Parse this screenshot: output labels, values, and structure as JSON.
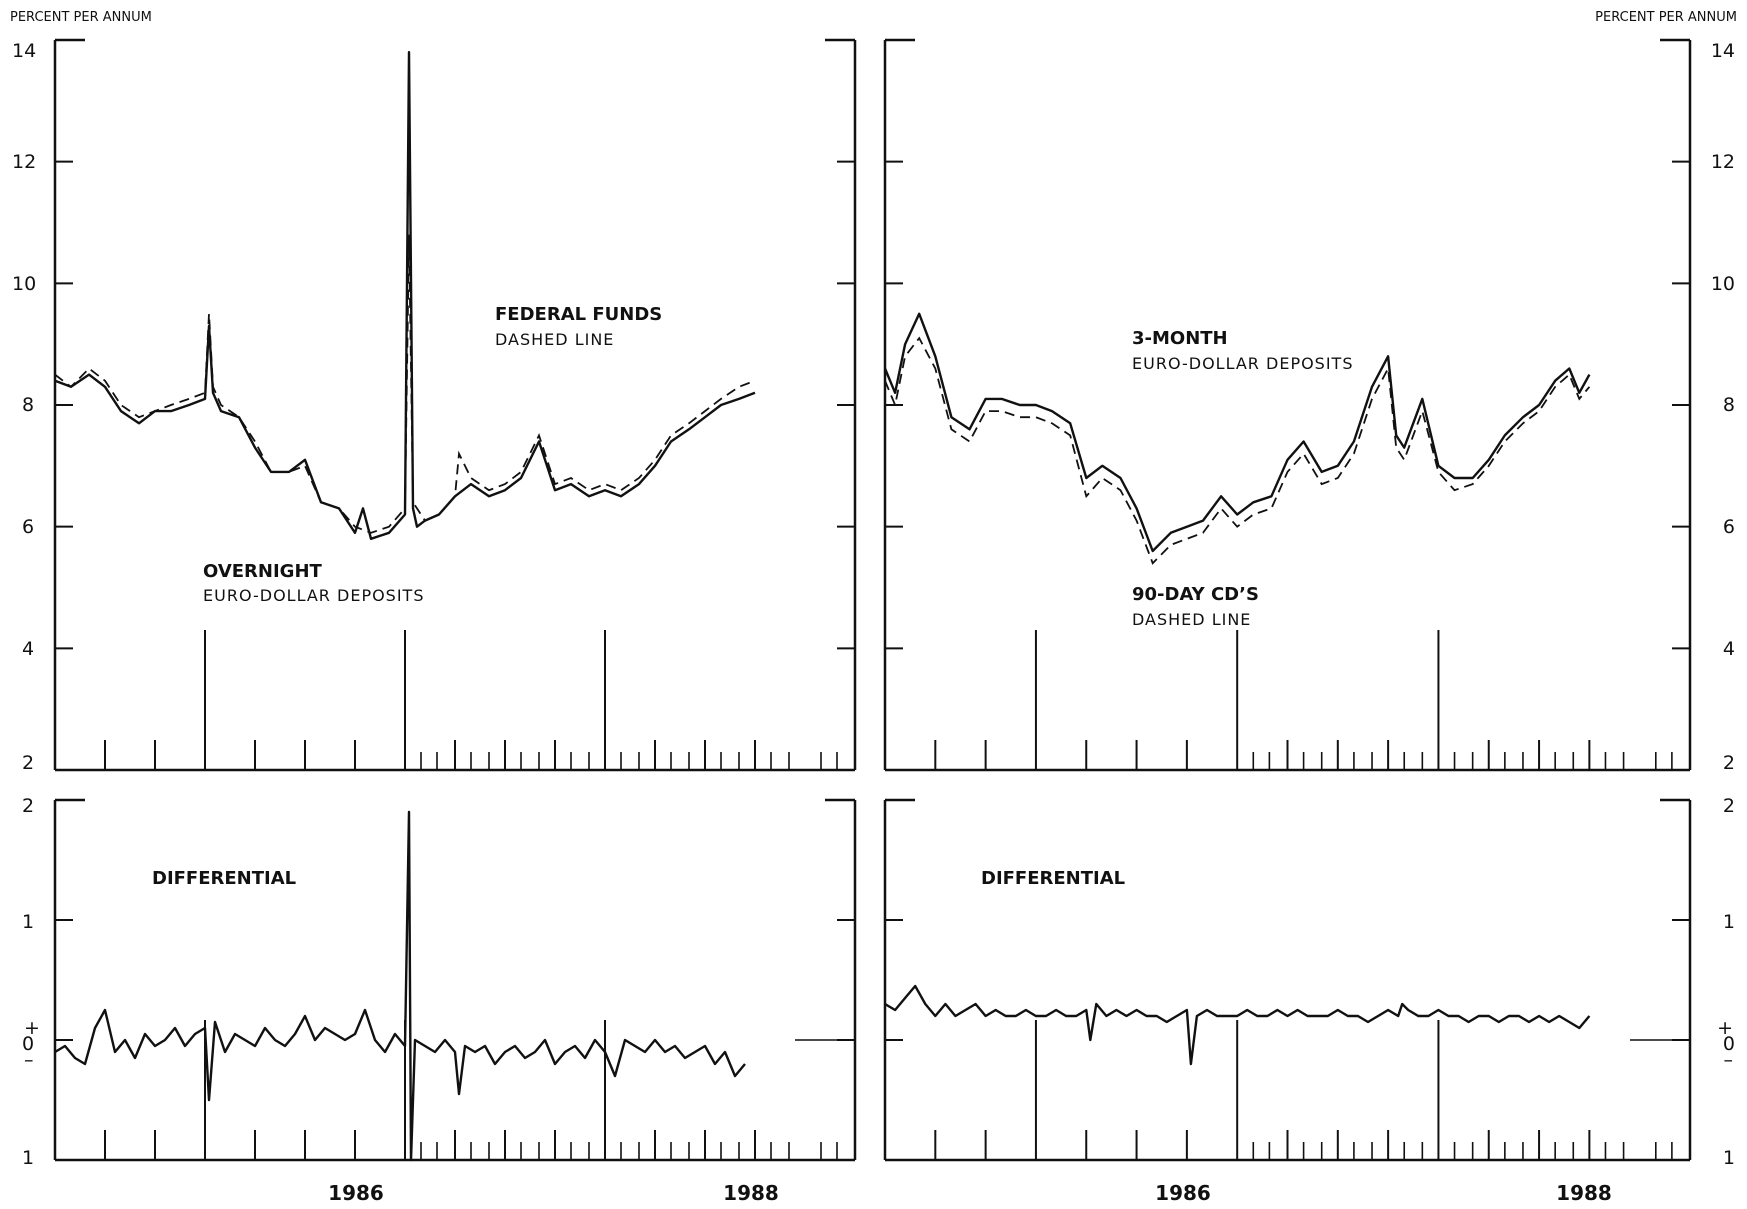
{
  "unit_labels": {
    "left": "PERCENT PER ANNUM",
    "right": "PERCENT PER ANNUM"
  },
  "left_ticks_top": [
    "14",
    "12",
    "10",
    "8",
    "6",
    "4",
    "2"
  ],
  "left_ticks_bottom": [
    "2",
    "1",
    "0",
    "1"
  ],
  "right_ticks_top": [
    "14",
    "12",
    "10",
    "8",
    "6",
    "4",
    "2"
  ],
  "right_ticks_bottom": [
    "2",
    "1",
    "0",
    "1"
  ],
  "zero_sign_plus": "+",
  "zero_sign_minus": "–",
  "x_year_labels": [
    "1986",
    "1988"
  ],
  "annotations": {
    "fed_funds_title": "FEDERAL FUNDS",
    "fed_funds_sub": "DASHED LINE",
    "overnight_title": "OVERNIGHT",
    "overnight_sub": "EURO-DOLLAR DEPOSITS",
    "three_month_title": "3-MONTH",
    "three_month_sub": "EURO-DOLLAR DEPOSITS",
    "cd_title": "90-DAY CD’S",
    "cd_sub": "DASHED LINE",
    "diff_left": "DIFFERENTIAL",
    "diff_right": "DIFFERENTIAL"
  },
  "colors": {
    "ink": "#111111",
    "paper": "#ffffff"
  },
  "chart_data": [
    {
      "type": "line",
      "panel": "top-left",
      "ylim": [
        2,
        14
      ],
      "xlim": [
        1984.75,
        1988.75
      ],
      "series": [
        {
          "name": "OVERNIGHT EURO-DOLLAR DEPOSITS",
          "x": [
            1984.75,
            1984.83,
            1984.92,
            1985.0,
            1985.08,
            1985.17,
            1985.25,
            1985.33,
            1985.42,
            1985.5,
            1985.52,
            1985.54,
            1985.58,
            1985.67,
            1985.75,
            1985.83,
            1985.92,
            1986.0,
            1986.08,
            1986.17,
            1986.25,
            1986.29,
            1986.33,
            1986.42,
            1986.5,
            1986.52,
            1986.54,
            1986.56,
            1986.6,
            1986.67,
            1986.75,
            1986.83,
            1986.92,
            1987.0,
            1987.08,
            1987.17,
            1987.25,
            1987.33,
            1987.42,
            1987.5,
            1987.58,
            1987.67,
            1987.75,
            1987.83,
            1987.92,
            1988.0,
            1988.08,
            1988.17,
            1988.25
          ],
          "values": [
            8.4,
            8.3,
            8.5,
            8.3,
            7.9,
            7.7,
            7.9,
            7.9,
            8.0,
            8.1,
            9.3,
            8.2,
            7.9,
            7.8,
            7.3,
            6.9,
            6.9,
            7.1,
            6.4,
            6.3,
            5.9,
            6.3,
            5.8,
            5.9,
            6.2,
            13.8,
            6.3,
            6.0,
            6.1,
            6.2,
            6.5,
            6.7,
            6.5,
            6.6,
            6.8,
            7.4,
            6.6,
            6.7,
            6.5,
            6.6,
            6.5,
            6.7,
            7.0,
            7.4,
            7.6,
            7.8,
            8.0,
            8.1,
            8.2
          ]
        },
        {
          "name": "FEDERAL FUNDS",
          "x": [
            1984.75,
            1984.83,
            1984.92,
            1985.0,
            1985.08,
            1985.17,
            1985.25,
            1985.33,
            1985.42,
            1985.5,
            1985.52,
            1985.54,
            1985.58,
            1985.67,
            1985.75,
            1985.83,
            1985.92,
            1986.0,
            1986.08,
            1986.17,
            1986.25,
            1986.33,
            1986.42,
            1986.5,
            1986.52,
            1986.54,
            1986.6,
            1986.67,
            1986.75,
            1986.77,
            1986.83,
            1986.92,
            1987.0,
            1987.08,
            1987.17,
            1987.25,
            1987.33,
            1987.42,
            1987.5,
            1987.58,
            1987.67,
            1987.75,
            1987.83,
            1987.92,
            1988.0,
            1988.08,
            1988.17,
            1988.25
          ],
          "values": [
            8.5,
            8.3,
            8.6,
            8.4,
            8.0,
            7.8,
            7.9,
            8.0,
            8.1,
            8.2,
            9.5,
            8.3,
            8.0,
            7.8,
            7.4,
            6.9,
            6.9,
            7.0,
            6.4,
            6.3,
            6.0,
            5.9,
            6.0,
            6.3,
            10.8,
            6.4,
            6.1,
            6.2,
            6.5,
            7.2,
            6.8,
            6.6,
            6.7,
            6.9,
            7.5,
            6.7,
            6.8,
            6.6,
            6.7,
            6.6,
            6.8,
            7.1,
            7.5,
            7.7,
            7.9,
            8.1,
            8.3,
            8.4
          ]
        }
      ]
    },
    {
      "type": "line",
      "panel": "bottom-left",
      "title": "DIFFERENTIAL",
      "ylim": [
        -1,
        2
      ],
      "xlim": [
        1984.75,
        1988.75
      ],
      "series": [
        {
          "x": [
            1984.75,
            1984.8,
            1984.85,
            1984.9,
            1984.95,
            1985.0,
            1985.05,
            1985.1,
            1985.15,
            1985.2,
            1985.25,
            1985.3,
            1985.35,
            1985.4,
            1985.45,
            1985.5,
            1985.52,
            1985.55,
            1985.6,
            1985.65,
            1985.7,
            1985.75,
            1985.8,
            1985.85,
            1985.9,
            1985.95,
            1986.0,
            1986.05,
            1986.1,
            1986.15,
            1986.2,
            1986.25,
            1986.3,
            1986.35,
            1986.4,
            1986.45,
            1986.5,
            1986.52,
            1986.53,
            1986.55,
            1986.6,
            1986.65,
            1986.7,
            1986.75,
            1986.77,
            1986.8,
            1986.85,
            1986.9,
            1986.95,
            1987.0,
            1987.05,
            1987.1,
            1987.15,
            1987.2,
            1987.25,
            1987.3,
            1987.35,
            1987.4,
            1987.45,
            1987.5,
            1987.55,
            1987.6,
            1987.65,
            1987.7,
            1987.75,
            1987.8,
            1987.85,
            1987.9,
            1987.95,
            1988.0,
            1988.05,
            1988.1,
            1988.15,
            1988.2
          ],
          "values": [
            -0.1,
            -0.05,
            -0.15,
            -0.2,
            0.1,
            0.25,
            -0.1,
            0.0,
            -0.15,
            0.05,
            -0.05,
            0.0,
            0.1,
            -0.05,
            0.05,
            0.1,
            -0.5,
            0.15,
            -0.1,
            0.05,
            0.0,
            -0.05,
            0.1,
            0.0,
            -0.05,
            0.05,
            0.2,
            0.0,
            0.1,
            0.05,
            0.0,
            0.05,
            0.25,
            0.0,
            -0.1,
            0.05,
            -0.05,
            1.9,
            -1.0,
            0.0,
            -0.05,
            -0.1,
            0.0,
            -0.1,
            -0.45,
            -0.05,
            -0.1,
            -0.05,
            -0.2,
            -0.1,
            -0.05,
            -0.15,
            -0.1,
            0.0,
            -0.2,
            -0.1,
            -0.05,
            -0.15,
            0.0,
            -0.1,
            -0.3,
            0.0,
            -0.05,
            -0.1,
            0.0,
            -0.1,
            -0.05,
            -0.15,
            -0.1,
            -0.05,
            -0.2,
            -0.1,
            -0.3,
            -0.2
          ]
        }
      ]
    },
    {
      "type": "line",
      "panel": "top-right",
      "ylim": [
        2,
        14
      ],
      "xlim": [
        1984.75,
        1988.75
      ],
      "series": [
        {
          "name": "3-MONTH EURO-DOLLAR DEPOSITS",
          "x": [
            1984.75,
            1984.8,
            1984.85,
            1984.92,
            1985.0,
            1985.08,
            1985.17,
            1985.25,
            1985.33,
            1985.42,
            1985.5,
            1985.58,
            1985.67,
            1985.75,
            1985.83,
            1985.92,
            1986.0,
            1986.08,
            1986.17,
            1986.25,
            1986.33,
            1986.42,
            1986.5,
            1986.58,
            1986.67,
            1986.75,
            1986.83,
            1986.92,
            1987.0,
            1987.08,
            1987.17,
            1987.25,
            1987.29,
            1987.33,
            1987.42,
            1987.5,
            1987.58,
            1987.67,
            1987.75,
            1987.83,
            1987.92,
            1988.0,
            1988.08,
            1988.15,
            1988.2,
            1988.25
          ],
          "values": [
            8.6,
            8.2,
            9.0,
            9.5,
            8.8,
            7.8,
            7.6,
            8.1,
            8.1,
            8.0,
            8.0,
            7.9,
            7.7,
            6.8,
            7.0,
            6.8,
            6.3,
            5.6,
            5.9,
            6.0,
            6.1,
            6.5,
            6.2,
            6.4,
            6.5,
            7.1,
            7.4,
            6.9,
            7.0,
            7.4,
            8.3,
            8.8,
            7.5,
            7.3,
            8.1,
            7.0,
            6.8,
            6.8,
            7.1,
            7.5,
            7.8,
            8.0,
            8.4,
            8.6,
            8.2,
            8.5
          ]
        },
        {
          "name": "90-DAY CD'S",
          "x": [
            1984.75,
            1984.8,
            1984.85,
            1984.92,
            1985.0,
            1985.08,
            1985.17,
            1985.25,
            1985.33,
            1985.42,
            1985.5,
            1985.58,
            1985.67,
            1985.75,
            1985.83,
            1985.92,
            1986.0,
            1986.08,
            1986.17,
            1986.25,
            1986.33,
            1986.42,
            1986.5,
            1986.58,
            1986.67,
            1986.75,
            1986.83,
            1986.92,
            1987.0,
            1987.08,
            1987.17,
            1987.25,
            1987.29,
            1987.33,
            1987.42,
            1987.5,
            1987.58,
            1987.67,
            1987.75,
            1987.83,
            1987.92,
            1988.0,
            1988.08,
            1988.15,
            1988.2,
            1988.25
          ],
          "values": [
            8.4,
            8.0,
            8.8,
            9.1,
            8.6,
            7.6,
            7.4,
            7.9,
            7.9,
            7.8,
            7.8,
            7.7,
            7.5,
            6.5,
            6.8,
            6.6,
            6.1,
            5.4,
            5.7,
            5.8,
            5.9,
            6.3,
            6.0,
            6.2,
            6.3,
            6.9,
            7.2,
            6.7,
            6.8,
            7.2,
            8.1,
            8.6,
            7.3,
            7.1,
            7.9,
            6.9,
            6.6,
            6.7,
            7.0,
            7.4,
            7.7,
            7.9,
            8.3,
            8.5,
            8.1,
            8.3
          ]
        }
      ]
    },
    {
      "type": "line",
      "panel": "bottom-right",
      "title": "DIFFERENTIAL",
      "ylim": [
        -1,
        2
      ],
      "xlim": [
        1984.75,
        1988.75
      ],
      "series": [
        {
          "x": [
            1984.75,
            1984.8,
            1984.85,
            1984.9,
            1984.95,
            1985.0,
            1985.05,
            1985.1,
            1985.15,
            1985.2,
            1985.25,
            1985.3,
            1985.35,
            1985.4,
            1985.45,
            1985.5,
            1985.55,
            1985.6,
            1985.65,
            1985.7,
            1985.75,
            1985.77,
            1985.8,
            1985.85,
            1985.9,
            1985.95,
            1986.0,
            1986.05,
            1986.1,
            1986.15,
            1986.2,
            1986.25,
            1986.27,
            1986.3,
            1986.35,
            1986.4,
            1986.45,
            1986.5,
            1986.55,
            1986.6,
            1986.65,
            1986.7,
            1986.75,
            1986.8,
            1986.85,
            1986.9,
            1986.95,
            1987.0,
            1987.05,
            1987.1,
            1987.15,
            1987.2,
            1987.25,
            1987.3,
            1987.32,
            1987.35,
            1987.4,
            1987.45,
            1987.5,
            1987.55,
            1987.6,
            1987.65,
            1987.7,
            1987.75,
            1987.8,
            1987.85,
            1987.9,
            1987.95,
            1988.0,
            1988.05,
            1988.1,
            1988.15,
            1988.2,
            1988.25
          ],
          "values": [
            0.3,
            0.25,
            0.35,
            0.45,
            0.3,
            0.2,
            0.3,
            0.2,
            0.25,
            0.3,
            0.2,
            0.25,
            0.2,
            0.2,
            0.25,
            0.2,
            0.2,
            0.25,
            0.2,
            0.2,
            0.25,
            0.0,
            0.3,
            0.2,
            0.25,
            0.2,
            0.25,
            0.2,
            0.2,
            0.15,
            0.2,
            0.25,
            -0.2,
            0.2,
            0.25,
            0.2,
            0.2,
            0.2,
            0.25,
            0.2,
            0.2,
            0.25,
            0.2,
            0.25,
            0.2,
            0.2,
            0.2,
            0.25,
            0.2,
            0.2,
            0.15,
            0.2,
            0.25,
            0.2,
            0.3,
            0.25,
            0.2,
            0.2,
            0.25,
            0.2,
            0.2,
            0.15,
            0.2,
            0.2,
            0.15,
            0.2,
            0.2,
            0.15,
            0.2,
            0.15,
            0.2,
            0.15,
            0.1,
            0.2
          ]
        }
      ]
    }
  ]
}
